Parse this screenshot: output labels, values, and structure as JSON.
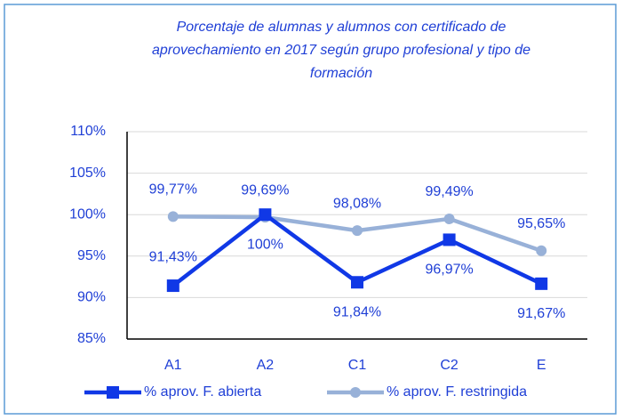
{
  "chart_data": {
    "type": "line",
    "title": [
      "Porcentaje de alumnas y alumnos con certificado de",
      "aprovechamiento en 2017 según grupo profesional y tipo de",
      "formación"
    ],
    "categories": [
      "A1",
      "A2",
      "C1",
      "C2",
      "E"
    ],
    "series": [
      {
        "name": "% aprov. F. abierta",
        "color": "#1038e6",
        "marker": "square",
        "values": [
          91.43,
          100,
          91.84,
          96.97,
          91.67
        ],
        "value_labels": [
          "91,43%",
          "100%",
          "91,84%",
          "96,97%",
          "91,67%"
        ]
      },
      {
        "name": "% aprov. F. restringida",
        "color": "#98b1d8",
        "marker": "circle",
        "values": [
          99.77,
          99.69,
          98.08,
          99.49,
          95.65
        ],
        "value_labels": [
          "99,77%",
          "99,69%",
          "98,08%",
          "99,49%",
          "95,65%"
        ]
      }
    ],
    "ylim": [
      85,
      110
    ],
    "yticks": [
      {
        "value": 85,
        "label": "85%"
      },
      {
        "value": 90,
        "label": "90%"
      },
      {
        "value": 95,
        "label": "95%"
      },
      {
        "value": 100,
        "label": "100%"
      },
      {
        "value": 105,
        "label": "105%"
      },
      {
        "value": 110,
        "label": "110%"
      }
    ],
    "grid": true,
    "legend": "bottom"
  }
}
